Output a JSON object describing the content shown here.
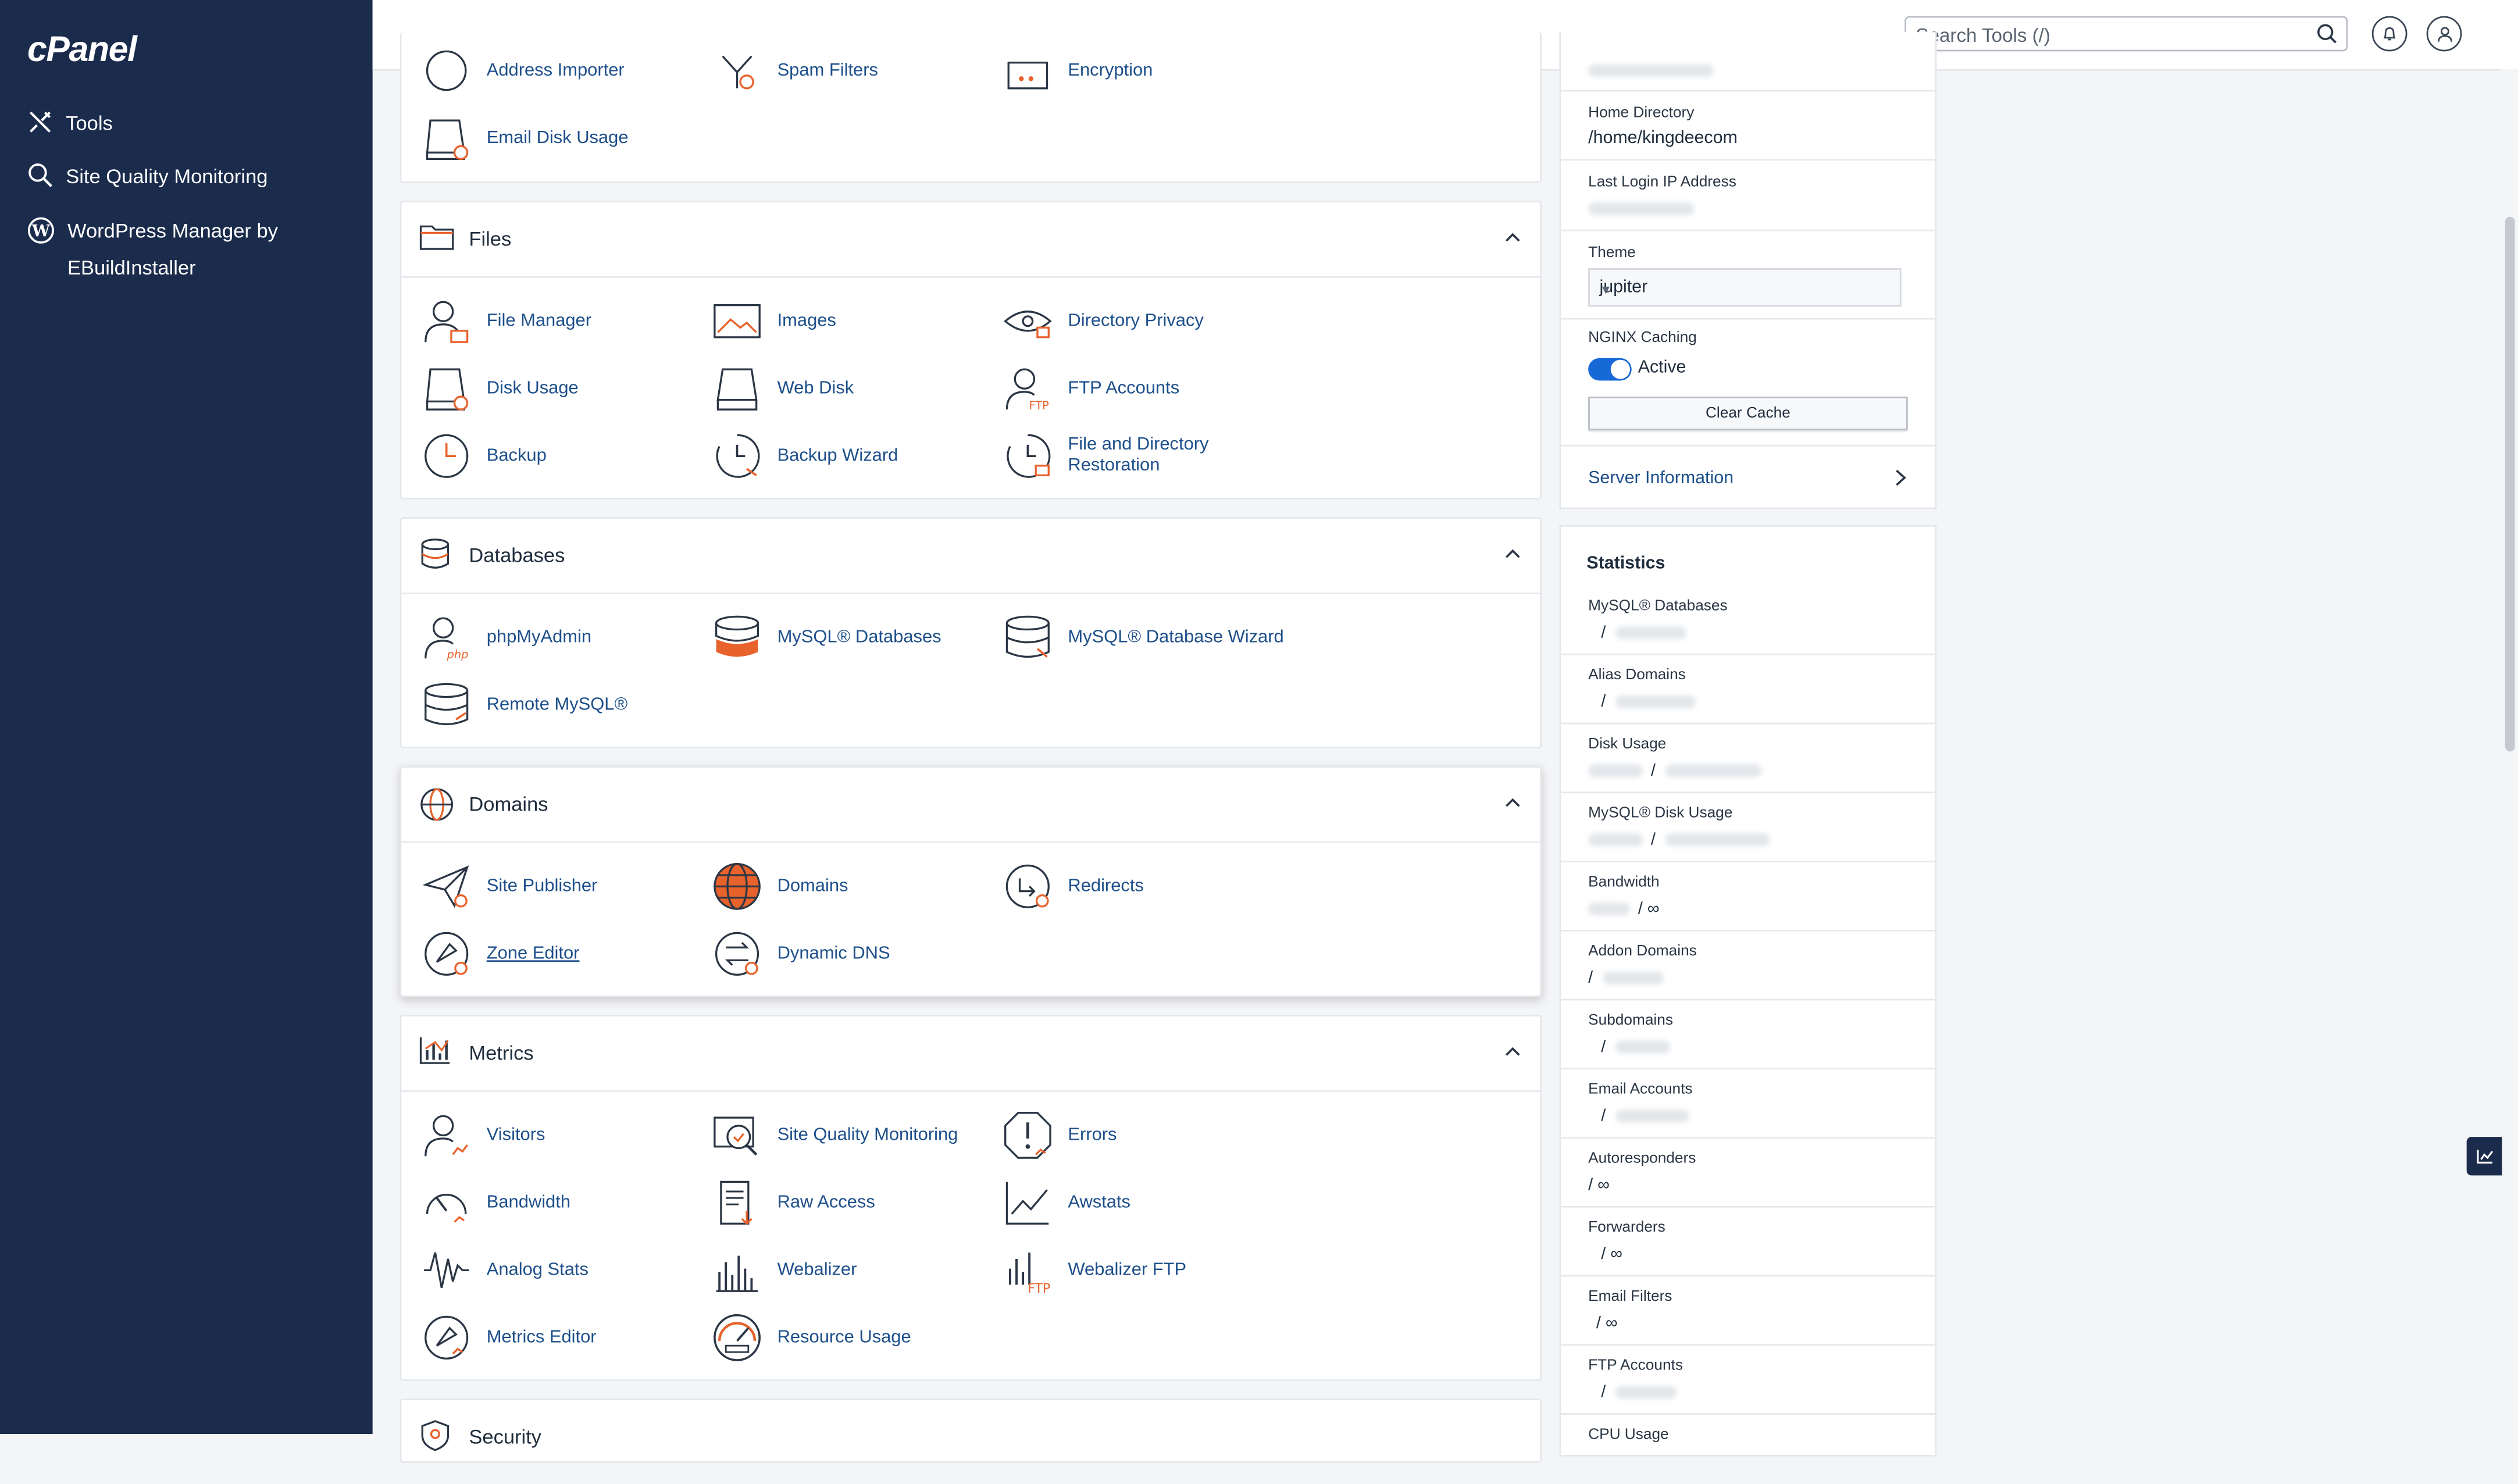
{
  "brand": "cPanel",
  "sidebar": {
    "items": [
      {
        "label": "Tools",
        "icon": "tools-icon"
      },
      {
        "label": "Site Quality Monitoring",
        "icon": "search-magnify-icon"
      },
      {
        "label": "WordPress Manager by EBuildInstaller",
        "icon": "wordpress-icon"
      }
    ]
  },
  "header": {
    "search_placeholder": "Search Tools (/)"
  },
  "sections": {
    "email_partial": {
      "tools": [
        {
          "label": "Address Importer"
        },
        {
          "label": "Spam Filters"
        },
        {
          "label": "Encryption"
        },
        {
          "label": "Email Disk Usage"
        }
      ]
    },
    "files": {
      "title": "Files",
      "tools": [
        {
          "label": "File Manager"
        },
        {
          "label": "Images"
        },
        {
          "label": "Directory Privacy"
        },
        {
          "label": "Disk Usage"
        },
        {
          "label": "Web Disk"
        },
        {
          "label": "FTP Accounts"
        },
        {
          "label": "Backup"
        },
        {
          "label": "Backup Wizard"
        },
        {
          "label": "File and Directory Restoration"
        }
      ]
    },
    "databases": {
      "title": "Databases",
      "tools": [
        {
          "label": "phpMyAdmin"
        },
        {
          "label": "MySQL® Databases"
        },
        {
          "label": "MySQL® Database Wizard"
        },
        {
          "label": "Remote MySQL®"
        }
      ]
    },
    "domains": {
      "title": "Domains",
      "tools": [
        {
          "label": "Site Publisher"
        },
        {
          "label": "Domains"
        },
        {
          "label": "Redirects"
        },
        {
          "label": "Zone Editor"
        },
        {
          "label": "Dynamic DNS"
        }
      ]
    },
    "metrics": {
      "title": "Metrics",
      "tools": [
        {
          "label": "Visitors"
        },
        {
          "label": "Site Quality Monitoring"
        },
        {
          "label": "Errors"
        },
        {
          "label": "Bandwidth"
        },
        {
          "label": "Raw Access"
        },
        {
          "label": "Awstats"
        },
        {
          "label": "Analog Stats"
        },
        {
          "label": "Webalizer"
        },
        {
          "label": "Webalizer FTP"
        },
        {
          "label": "Metrics Editor"
        },
        {
          "label": "Resource Usage"
        }
      ]
    },
    "security": {
      "title": "Security"
    }
  },
  "general_info": {
    "home_directory_label": "Home Directory",
    "home_directory_value": "/home/kingdeecom",
    "last_login_label": "Last Login IP Address",
    "theme_label": "Theme",
    "theme_value": "jupiter",
    "nginx_label": "NGINX Caching",
    "nginx_status": "Active",
    "clear_cache": "Clear Cache",
    "server_info": "Server Information"
  },
  "statistics": {
    "title": "Statistics",
    "rows": [
      {
        "label": "MySQL® Databases",
        "value": "/"
      },
      {
        "label": "Alias Domains",
        "value": "/"
      },
      {
        "label": "Disk Usage",
        "value": "/"
      },
      {
        "label": "MySQL® Disk Usage",
        "value": "/"
      },
      {
        "label": "Bandwidth",
        "value": "/ ∞"
      },
      {
        "label": "Addon Domains",
        "value": "/"
      },
      {
        "label": "Subdomains",
        "value": "/"
      },
      {
        "label": "Email Accounts",
        "value": "/"
      },
      {
        "label": "Autoresponders",
        "value": "/ ∞"
      },
      {
        "label": "Forwarders",
        "value": "/ ∞"
      },
      {
        "label": "Email Filters",
        "value": "/ ∞"
      },
      {
        "label": "FTP Accounts",
        "value": "/"
      },
      {
        "label": "CPU Usage",
        "value": ""
      }
    ]
  },
  "colors": {
    "sidebar": "#1a2b4c",
    "link": "#1d4f8a",
    "accent": "#e8622c",
    "toggle": "#1669d6"
  }
}
